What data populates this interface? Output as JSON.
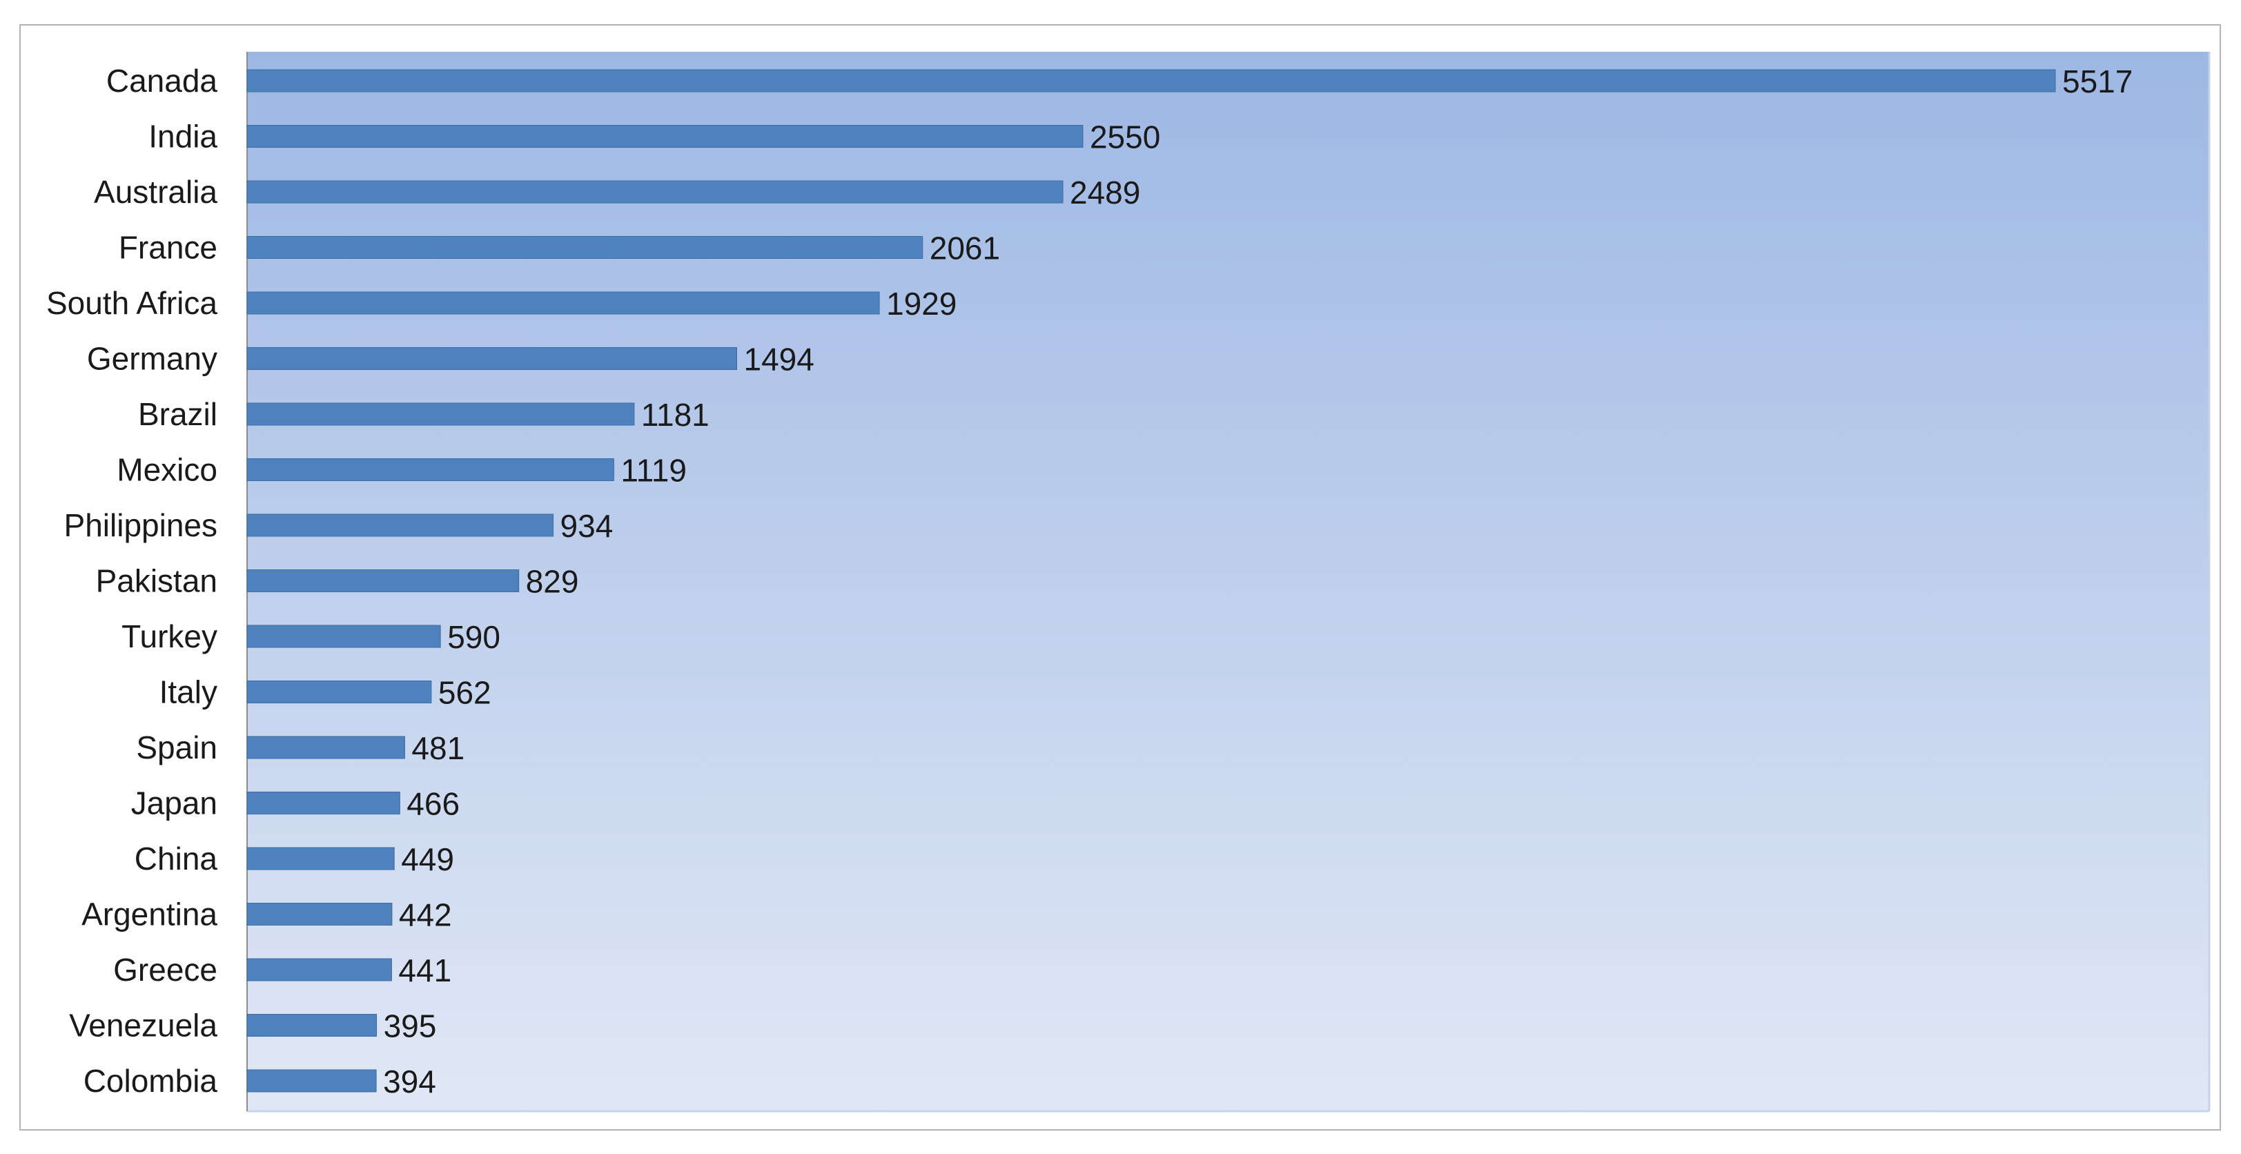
{
  "chart_data": {
    "type": "bar",
    "orientation": "horizontal",
    "title": "",
    "xlabel": "",
    "ylabel": "",
    "categories": [
      "Canada",
      "India",
      "Australia",
      "France",
      "South Africa",
      "Germany",
      "Brazil",
      "Mexico",
      "Philippines",
      "Pakistan",
      "Turkey",
      "Italy",
      "Spain",
      "Japan",
      "China",
      "Argentina",
      "Greece",
      "Venezuela",
      "Colombia"
    ],
    "values": [
      5517,
      2550,
      2489,
      2061,
      1929,
      1494,
      1181,
      1119,
      934,
      829,
      590,
      562,
      481,
      466,
      449,
      442,
      441,
      395,
      394
    ],
    "xlim": [
      0,
      6000
    ],
    "grid": false,
    "legend": "none",
    "data_labels": true,
    "colors": {
      "bar": "#4f81bd",
      "plot_bg_top": "#9db7e4",
      "plot_bg_bottom": "#e1e8f5"
    }
  }
}
